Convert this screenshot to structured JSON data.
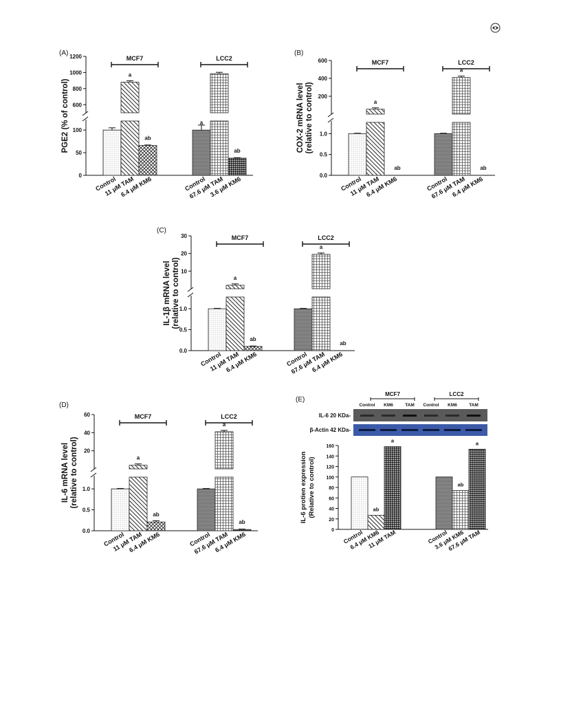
{
  "page": {
    "logo_icon": "journal-logo-icon"
  },
  "chart_data": [
    {
      "panel": "(A)",
      "type": "bar",
      "ylabel": "PGE2 (% of control)",
      "groups": [
        {
          "name": "MCF7",
          "bars": [
            {
              "category": "Control",
              "value": 100,
              "err": 5,
              "label": "",
              "pattern": "dots"
            },
            {
              "category": "11 μM TAM",
              "value": 880,
              "err": 8,
              "label": "a",
              "pattern": "diag"
            },
            {
              "category": "6.4 μM KM6",
              "value": 66,
              "err": 1,
              "label": "ab",
              "pattern": "cross"
            }
          ]
        },
        {
          "name": "LCC2",
          "bars": [
            {
              "category": "Control",
              "value": 100,
              "err": 11,
              "label": "a",
              "pattern": "hlines"
            },
            {
              "category": "67.6 μM TAM",
              "value": 985,
              "err": 10,
              "label": "",
              "pattern": "grid"
            },
            {
              "category": "3.6 μM KM6",
              "value": 38,
              "err": 1,
              "label": "ab",
              "pattern": "dense"
            }
          ]
        }
      ],
      "y_ticks_low": [
        "0",
        "50",
        "100"
      ],
      "y_ticks_high": [
        "600",
        "800",
        "1000",
        "1200"
      ]
    },
    {
      "panel": "(B)",
      "type": "bar",
      "ylabel": "COX-2 mRNA level\n(relative to control)",
      "groups": [
        {
          "name": "MCF7",
          "bars": [
            {
              "category": "Control",
              "value": 1.0,
              "err": 0.01,
              "label": "",
              "pattern": "dots"
            },
            {
              "category": "11 μM TAM",
              "value": 55,
              "err": 2,
              "label": "a",
              "pattern": "diag"
            },
            {
              "category": "6.4 μM KM6",
              "value": 0,
              "err": 0,
              "label": "ab",
              "pattern": "cross"
            }
          ]
        },
        {
          "name": "LCC2",
          "bars": [
            {
              "category": "Control",
              "value": 1.0,
              "err": 0.01,
              "label": "",
              "pattern": "hlines"
            },
            {
              "category": "67.6 μM TAM",
              "value": 410,
              "err": 3,
              "label": "a",
              "pattern": "grid"
            },
            {
              "category": "6.4 μM KM6",
              "value": 0,
              "err": 0,
              "label": "ab",
              "pattern": "dense"
            }
          ]
        }
      ],
      "y_ticks_low": [
        "0.0",
        "0.5",
        "1.0"
      ],
      "y_ticks_high": [
        "200",
        "400",
        "600"
      ]
    },
    {
      "panel": "(C)",
      "type": "bar",
      "ylabel": "IL-1β mRNA level\n(relative to control)",
      "groups": [
        {
          "name": "MCF7",
          "bars": [
            {
              "category": "Control",
              "value": 1.0,
              "err": 0.01,
              "label": "",
              "pattern": "dots"
            },
            {
              "category": "11 μM TAM",
              "value": 2.0,
              "err": 0.1,
              "label": "a",
              "pattern": "diag"
            },
            {
              "category": "6.4 μM KM6",
              "value": 0.1,
              "err": 0.01,
              "label": "ab",
              "pattern": "cross"
            }
          ]
        },
        {
          "name": "LCC2",
          "bars": [
            {
              "category": "Control",
              "value": 1.0,
              "err": 0.01,
              "label": "",
              "pattern": "hlines"
            },
            {
              "category": "67.6 μM TAM",
              "value": 19.5,
              "err": 0.2,
              "label": "a",
              "pattern": "grid"
            },
            {
              "category": "6.4 μM KM6",
              "value": 0,
              "err": 0,
              "label": "ab",
              "pattern": "dense"
            }
          ]
        }
      ],
      "y_ticks_low": [
        "0.0",
        "0.5",
        "1.0"
      ],
      "y_ticks_high": [
        "10",
        "20",
        "30"
      ]
    },
    {
      "panel": "(D)",
      "type": "bar",
      "ylabel": "IL-6 mRNA level\n(relative to control)",
      "groups": [
        {
          "name": "MCF7",
          "bars": [
            {
              "category": "Control",
              "value": 1.0,
              "err": 0.01,
              "label": "",
              "pattern": "dots"
            },
            {
              "category": "11 μM TAM",
              "value": 4.0,
              "err": 0.2,
              "label": "a",
              "pattern": "diag"
            },
            {
              "category": "6.4 μM KM6",
              "value": 0.21,
              "err": 0.03,
              "label": "ab",
              "pattern": "cross"
            }
          ]
        },
        {
          "name": "LCC2",
          "bars": [
            {
              "category": "Control",
              "value": 1.0,
              "err": 0.01,
              "label": "",
              "pattern": "hlines"
            },
            {
              "category": "67.6 μM TAM",
              "value": 41,
              "err": 0.4,
              "label": "a",
              "pattern": "grid"
            },
            {
              "category": "6.4 μM KM6",
              "value": 0.03,
              "err": 0.01,
              "label": "ab",
              "pattern": "dense"
            }
          ]
        }
      ],
      "y_ticks_low": [
        "0.0",
        "0.5",
        "1.0"
      ],
      "y_ticks_high": [
        "20",
        "40",
        "60"
      ]
    },
    {
      "panel": "(E)",
      "type": "bar",
      "ylabel": "IL-6 protien expression\n(Relative to control)",
      "ylim": [
        0,
        160
      ],
      "y_ticks": [
        "0",
        "20",
        "40",
        "60",
        "80",
        "100",
        "120",
        "140",
        "160"
      ],
      "groups": [
        {
          "name": "MCF7",
          "bars": [
            {
              "category": "Control",
              "value": 100,
              "label": "",
              "pattern": "dots"
            },
            {
              "category": "6.4 μM KM6",
              "value": 27,
              "label": "ab",
              "pattern": "diag"
            },
            {
              "category": "11 μM TAM",
              "value": 158,
              "label": "a",
              "pattern": "dense"
            }
          ]
        },
        {
          "name": "LCC2",
          "bars": [
            {
              "category": "Control",
              "value": 100,
              "label": "",
              "pattern": "hlines"
            },
            {
              "category": "3.6 μM KM6",
              "value": 74,
              "label": "ab",
              "pattern": "grid"
            },
            {
              "category": "67.6 μM TAM",
              "value": 153,
              "label": "a",
              "pattern": "dense"
            }
          ]
        }
      ],
      "blot": {
        "group_labels": [
          "MCF7",
          "LCC2"
        ],
        "lane_labels": [
          "Control",
          "KM6",
          "TAM",
          "Control",
          "KM6",
          "TAM"
        ],
        "rows": [
          "IL-6 20 KDa-",
          "β-Actin 42 KDa-"
        ]
      }
    }
  ]
}
